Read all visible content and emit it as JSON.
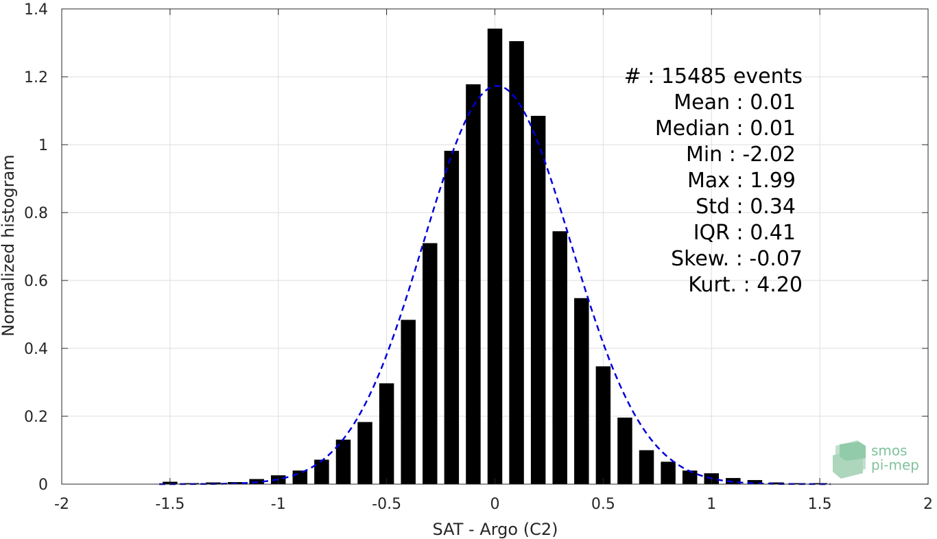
{
  "chart_data": {
    "type": "bar",
    "xlabel": "SAT - Argo (C2)",
    "ylabel": "Normalized histogram",
    "xlim": [
      -2,
      2
    ],
    "ylim": [
      0,
      1.4
    ],
    "xticks": [
      -2,
      -1.5,
      -1,
      -0.5,
      0,
      0.5,
      1,
      1.5,
      2
    ],
    "xtick_labels": [
      "-2",
      "-1.5",
      "-1",
      "-0.5",
      "0",
      "0.5",
      "1",
      "1.5",
      "2"
    ],
    "yticks": [
      0,
      0.2,
      0.4,
      0.6,
      0.8,
      1,
      1.2,
      1.4
    ],
    "ytick_labels": [
      "0",
      "0.2",
      "0.4",
      "0.6",
      "0.8",
      "1",
      "1.2",
      "1.4"
    ],
    "grid": true,
    "bar_color": "#000000",
    "fit_color": "#0000dd",
    "bin_width": 0.1,
    "x": [
      -1.5,
      -1.4,
      -1.3,
      -1.2,
      -1.1,
      -1.0,
      -0.9,
      -0.8,
      -0.7,
      -0.6,
      -0.5,
      -0.4,
      -0.3,
      -0.2,
      -0.1,
      0.0,
      0.1,
      0.2,
      0.3,
      0.4,
      0.5,
      0.6,
      0.7,
      0.8,
      0.9,
      1.0,
      1.1,
      1.2,
      1.3,
      1.4,
      1.5
    ],
    "values": [
      0.007,
      0.003,
      0.005,
      0.006,
      0.015,
      0.026,
      0.04,
      0.072,
      0.131,
      0.183,
      0.297,
      0.484,
      0.71,
      0.982,
      1.178,
      1.342,
      1.305,
      1.085,
      0.745,
      0.548,
      0.347,
      0.196,
      0.1,
      0.066,
      0.04,
      0.032,
      0.018,
      0.012,
      0.005,
      0.003,
      0.003
    ],
    "fit": {
      "type": "normal",
      "mean": 0.01,
      "std": 0.34,
      "style": "dashed"
    },
    "stats": [
      "#  : 15485 events",
      "Mean : 0.01",
      "Median : 0.01",
      "Min : -2.02",
      "Max : 1.99",
      "Std : 0.34",
      "IQR : 0.41",
      "Skew. : -0.07",
      "Kurt. : 4.20"
    ]
  },
  "logo": {
    "line1": "smos",
    "line2": "pi-mep",
    "color": "#7fc29b"
  }
}
